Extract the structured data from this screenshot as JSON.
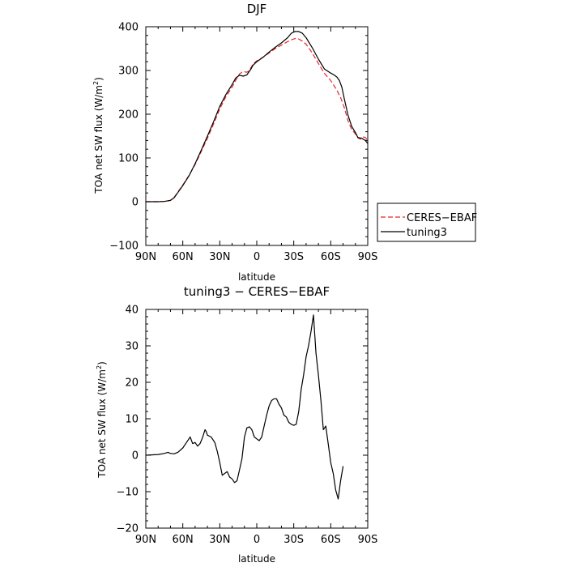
{
  "chart_data": [
    {
      "type": "line",
      "title": "DJF",
      "xlabel": "latitude",
      "ylabel": "TOA net SW flux (W/m²)",
      "ylabel_parts": {
        "main": "TOA net SW flux (W/m",
        "sup": "2",
        "end": ")"
      },
      "xlim": [
        90,
        -90
      ],
      "ylim": [
        -100,
        400
      ],
      "x_ticks": [
        90,
        60,
        30,
        0,
        -30,
        -60,
        -90
      ],
      "x_tick_labels": [
        "90N",
        "60N",
        "30N",
        "0",
        "30S",
        "60S",
        "90S"
      ],
      "y_ticks": [
        -100,
        0,
        100,
        200,
        300,
        400
      ],
      "y_tick_labels": [
        "−100",
        "0",
        "100",
        "200",
        "300",
        "400"
      ],
      "legend": {
        "placement": "right",
        "entries": [
          "CERES−EBAF",
          "tuning3"
        ]
      },
      "series": [
        {
          "name": "CERES−EBAF",
          "color": "#e8242a",
          "dash": "dashed",
          "points": [
            [
              90,
              0
            ],
            [
              80,
              0
            ],
            [
              75,
              0.5
            ],
            [
              70,
              3
            ],
            [
              67,
              10
            ],
            [
              64,
              22
            ],
            [
              60,
              38
            ],
            [
              55,
              60
            ],
            [
              50,
              85
            ],
            [
              45,
              115
            ],
            [
              40,
              145
            ],
            [
              35,
              178
            ],
            [
              30,
              212
            ],
            [
              25,
              240
            ],
            [
              20,
              262
            ],
            [
              17,
              278
            ],
            [
              14,
              292
            ],
            [
              12,
              296
            ],
            [
              10,
              297
            ],
            [
              8,
              296
            ],
            [
              6,
              300
            ],
            [
              3,
              315
            ],
            [
              0,
              322
            ],
            [
              -5,
              330
            ],
            [
              -10,
              340
            ],
            [
              -15,
              350
            ],
            [
              -20,
              358
            ],
            [
              -25,
              366
            ],
            [
              -28,
              370
            ],
            [
              -31,
              373
            ],
            [
              -34,
              372
            ],
            [
              -37,
              367
            ],
            [
              -40,
              360
            ],
            [
              -45,
              340
            ],
            [
              -50,
              316
            ],
            [
              -55,
              293
            ],
            [
              -60,
              277
            ],
            [
              -65,
              255
            ],
            [
              -68,
              238
            ],
            [
              -71,
              215
            ],
            [
              -74,
              185
            ],
            [
              -77,
              165
            ],
            [
              -80,
              155
            ],
            [
              -82,
              146
            ],
            [
              -84,
              143
            ],
            [
              -86,
              148
            ],
            [
              -88,
              147
            ],
            [
              -90,
              140
            ]
          ]
        },
        {
          "name": "tuning3",
          "color": "#000000",
          "dash": "solid",
          "points": [
            [
              90,
              0
            ],
            [
              80,
              0
            ],
            [
              75,
              0.5
            ],
            [
              70,
              3
            ],
            [
              67,
              9
            ],
            [
              64,
              21
            ],
            [
              60,
              37
            ],
            [
              55,
              59
            ],
            [
              50,
              87
            ],
            [
              45,
              118
            ],
            [
              40,
              150
            ],
            [
              35,
              183
            ],
            [
              30,
              218
            ],
            [
              25,
              245
            ],
            [
              20,
              268
            ],
            [
              17,
              283
            ],
            [
              14,
              289
            ],
            [
              11,
              287
            ],
            [
              8,
              290
            ],
            [
              5,
              302
            ],
            [
              3,
              312
            ],
            [
              0,
              320
            ],
            [
              -5,
              330
            ],
            [
              -10,
              342
            ],
            [
              -15,
              353
            ],
            [
              -20,
              363
            ],
            [
              -25,
              375
            ],
            [
              -28,
              385
            ],
            [
              -31,
              389
            ],
            [
              -34,
              389
            ],
            [
              -37,
              385
            ],
            [
              -40,
              375
            ],
            [
              -45,
              352
            ],
            [
              -50,
              326
            ],
            [
              -55,
              303
            ],
            [
              -60,
              294
            ],
            [
              -63,
              289
            ],
            [
              -65,
              285
            ],
            [
              -67,
              277
            ],
            [
              -69,
              262
            ],
            [
              -71,
              235
            ],
            [
              -74,
              198
            ],
            [
              -77,
              172
            ],
            [
              -80,
              158
            ],
            [
              -82,
              147
            ],
            [
              -85,
              145
            ],
            [
              -88,
              140
            ],
            [
              -90,
              133
            ]
          ]
        }
      ]
    },
    {
      "type": "line",
      "title": "tuning3 − CERES−EBAF",
      "xlabel": "latitude",
      "ylabel": "TOA net SW flux (W/m²)",
      "ylabel_parts": {
        "main": "TOA net SW flux (W/m",
        "sup": "2",
        "end": ")"
      },
      "xlim": [
        90,
        -90
      ],
      "ylim": [
        -20,
        40
      ],
      "x_ticks": [
        90,
        60,
        30,
        0,
        -30,
        -60,
        -90
      ],
      "x_tick_labels": [
        "90N",
        "60N",
        "30N",
        "0",
        "30S",
        "60S",
        "90S"
      ],
      "y_ticks": [
        -20,
        -10,
        0,
        10,
        20,
        30,
        40
      ],
      "y_tick_labels": [
        "−20",
        "−10",
        "0",
        "10",
        "20",
        "30",
        "40"
      ],
      "series": [
        {
          "color": "#000000",
          "dash": "solid",
          "points": [
            [
              90,
              0
            ],
            [
              80,
              0.2
            ],
            [
              75,
              0.5
            ],
            [
              72,
              0.8
            ],
            [
              70,
              0.5
            ],
            [
              67,
              0.4
            ],
            [
              64,
              0.8
            ],
            [
              60,
              2
            ],
            [
              57,
              3.5
            ],
            [
              54,
              5
            ],
            [
              52,
              3.2
            ],
            [
              50,
              3.5
            ],
            [
              48,
              2.5
            ],
            [
              46,
              3.2
            ],
            [
              44,
              4.8
            ],
            [
              42,
              7
            ],
            [
              41,
              6.5
            ],
            [
              40,
              5.5
            ],
            [
              37,
              5
            ],
            [
              34,
              3.5
            ],
            [
              32,
              1
            ],
            [
              30,
              -2
            ],
            [
              28,
              -5.5
            ],
            [
              26,
              -5
            ],
            [
              24,
              -4.5
            ],
            [
              22,
              -6
            ],
            [
              20,
              -6.5
            ],
            [
              18,
              -7.5
            ],
            [
              16,
              -7
            ],
            [
              14,
              -4
            ],
            [
              12,
              -1
            ],
            [
              10,
              5
            ],
            [
              8,
              7.5
            ],
            [
              6,
              7.8
            ],
            [
              4,
              7
            ],
            [
              2,
              5
            ],
            [
              0,
              4.5
            ],
            [
              -2,
              4
            ],
            [
              -4,
              5
            ],
            [
              -6,
              8
            ],
            [
              -8,
              11
            ],
            [
              -10,
              13.5
            ],
            [
              -12,
              15
            ],
            [
              -14,
              15.5
            ],
            [
              -16,
              15.5
            ],
            [
              -18,
              14
            ],
            [
              -20,
              13
            ],
            [
              -22,
              11
            ],
            [
              -24,
              10.5
            ],
            [
              -26,
              9
            ],
            [
              -28,
              8.5
            ],
            [
              -30,
              8.2
            ],
            [
              -32,
              8.5
            ],
            [
              -34,
              12
            ],
            [
              -36,
              18
            ],
            [
              -38,
              22
            ],
            [
              -40,
              27
            ],
            [
              -42,
              30
            ],
            [
              -44,
              34
            ],
            [
              -46,
              38.5
            ],
            [
              -48,
              28
            ],
            [
              -50,
              22
            ],
            [
              -52,
              15
            ],
            [
              -54,
              7
            ],
            [
              -56,
              8
            ],
            [
              -58,
              3
            ],
            [
              -60,
              -2
            ],
            [
              -62,
              -5
            ],
            [
              -64,
              -9.5
            ],
            [
              -66,
              -12
            ],
            [
              -68,
              -7
            ],
            [
              -70,
              -3
            ]
          ]
        }
      ]
    }
  ]
}
